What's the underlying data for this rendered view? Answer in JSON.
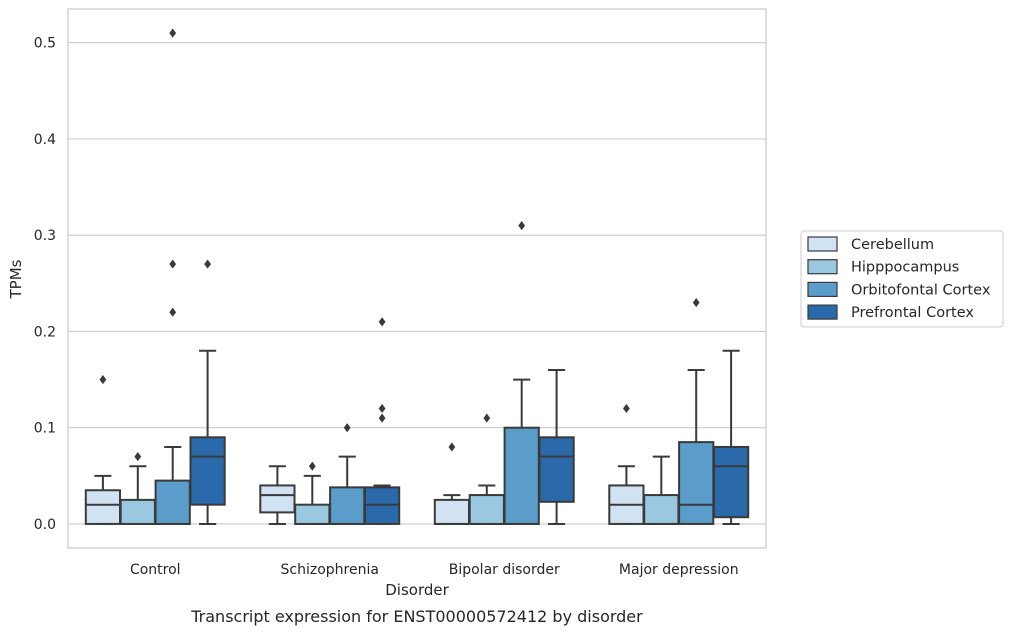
{
  "chart_data": {
    "type": "box",
    "caption": "Transcript expression for ENST00000572412 by disorder",
    "xlabel": "Disorder",
    "ylabel": "TPMs",
    "ylim": [
      -0.025,
      0.535
    ],
    "yticks": [
      0.0,
      0.1,
      0.2,
      0.3,
      0.4,
      0.5
    ],
    "ytick_labels": [
      "0.0",
      "0.1",
      "0.2",
      "0.3",
      "0.4",
      "0.5"
    ],
    "grid": true,
    "legend_position": "right",
    "categories": [
      "Control",
      "Schizophrenia",
      "Bipolar disorder",
      "Major depression"
    ],
    "series": [
      {
        "name": "Cerebellum",
        "color": "#d1e2f2",
        "boxes": [
          {
            "whislo": 0.0,
            "q1": 0.0,
            "med": 0.02,
            "q3": 0.035,
            "whishi": 0.05,
            "fliers": [
              0.15
            ]
          },
          {
            "whislo": 0.0,
            "q1": 0.012,
            "med": 0.03,
            "q3": 0.04,
            "whishi": 0.06,
            "fliers": []
          },
          {
            "whislo": 0.0,
            "q1": 0.0,
            "med": 0.0,
            "q3": 0.025,
            "whishi": 0.03,
            "fliers": [
              0.08
            ]
          },
          {
            "whislo": 0.0,
            "q1": 0.0,
            "med": 0.02,
            "q3": 0.04,
            "whishi": 0.06,
            "fliers": [
              0.12
            ]
          }
        ]
      },
      {
        "name": "Hipppocampus",
        "color": "#9ac8e0",
        "boxes": [
          {
            "whislo": 0.0,
            "q1": 0.0,
            "med": 0.0,
            "q3": 0.025,
            "whishi": 0.06,
            "fliers": [
              0.07
            ]
          },
          {
            "whislo": 0.0,
            "q1": 0.0,
            "med": 0.0,
            "q3": 0.02,
            "whishi": 0.05,
            "fliers": [
              0.06
            ]
          },
          {
            "whislo": 0.0,
            "q1": 0.0,
            "med": 0.0,
            "q3": 0.03,
            "whishi": 0.04,
            "fliers": [
              0.11
            ]
          },
          {
            "whislo": 0.0,
            "q1": 0.0,
            "med": 0.0,
            "q3": 0.03,
            "whishi": 0.07,
            "fliers": []
          }
        ]
      },
      {
        "name": "Orbitofontal Cortex",
        "color": "#5a9dcb",
        "boxes": [
          {
            "whislo": 0.0,
            "q1": 0.0,
            "med": 0.0,
            "q3": 0.045,
            "whishi": 0.08,
            "fliers": [
              0.22,
              0.27,
              0.51
            ]
          },
          {
            "whislo": 0.0,
            "q1": 0.0,
            "med": 0.0,
            "q3": 0.038,
            "whishi": 0.07,
            "fliers": [
              0.1
            ]
          },
          {
            "whislo": 0.0,
            "q1": 0.0,
            "med": 0.0,
            "q3": 0.1,
            "whishi": 0.15,
            "fliers": [
              0.31
            ]
          },
          {
            "whislo": 0.0,
            "q1": 0.0,
            "med": 0.02,
            "q3": 0.085,
            "whishi": 0.16,
            "fliers": [
              0.23
            ]
          }
        ]
      },
      {
        "name": "Prefrontal Cortex",
        "color": "#2a6aab",
        "boxes": [
          {
            "whislo": 0.0,
            "q1": 0.02,
            "med": 0.07,
            "q3": 0.09,
            "whishi": 0.18,
            "fliers": [
              0.27
            ]
          },
          {
            "whislo": 0.0,
            "q1": 0.0,
            "med": 0.02,
            "q3": 0.038,
            "whishi": 0.04,
            "fliers": [
              0.11,
              0.12,
              0.21
            ]
          },
          {
            "whislo": 0.0,
            "q1": 0.023,
            "med": 0.07,
            "q3": 0.09,
            "whishi": 0.16,
            "fliers": []
          },
          {
            "whislo": 0.0,
            "q1": 0.007,
            "med": 0.06,
            "q3": 0.08,
            "whishi": 0.18,
            "fliers": []
          }
        ]
      }
    ]
  }
}
